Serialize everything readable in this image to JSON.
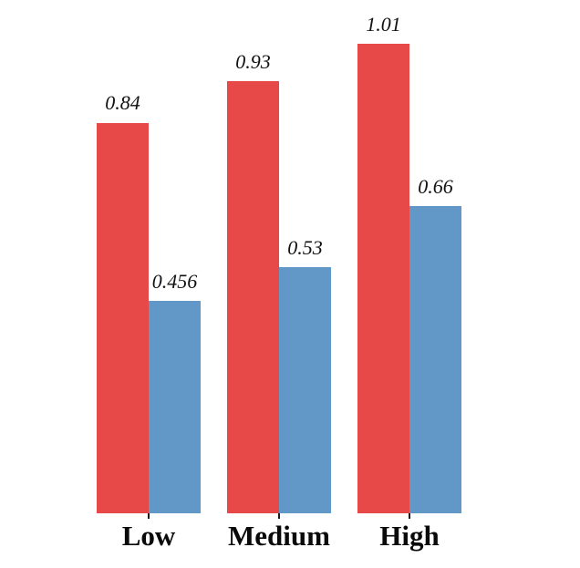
{
  "chart_data": {
    "type": "bar",
    "title": "",
    "xlabel": "",
    "ylabel": "",
    "categories": [
      "Low",
      "Medium",
      "High"
    ],
    "series": [
      {
        "name": "red-series",
        "color": "#e74948",
        "values": [
          0.84,
          0.93,
          1.01
        ],
        "labels": [
          "0.84",
          "0.93",
          "1.01"
        ]
      },
      {
        "name": "blue-series",
        "color": "#6298c8",
        "values": [
          0.456,
          0.53,
          0.66
        ],
        "labels": [
          "0.456",
          "0.53",
          "0.66"
        ]
      }
    ],
    "ylim": [
      0,
      1.1
    ],
    "grid": false,
    "legend": "none",
    "axes": "no axis lines; short x-ticks at each category center",
    "value_labels_shown": true
  },
  "colors": {
    "background": "#ffffff",
    "text": "#0a0a0a",
    "bar_red": "#e74948",
    "bar_blue": "#6298c8"
  }
}
